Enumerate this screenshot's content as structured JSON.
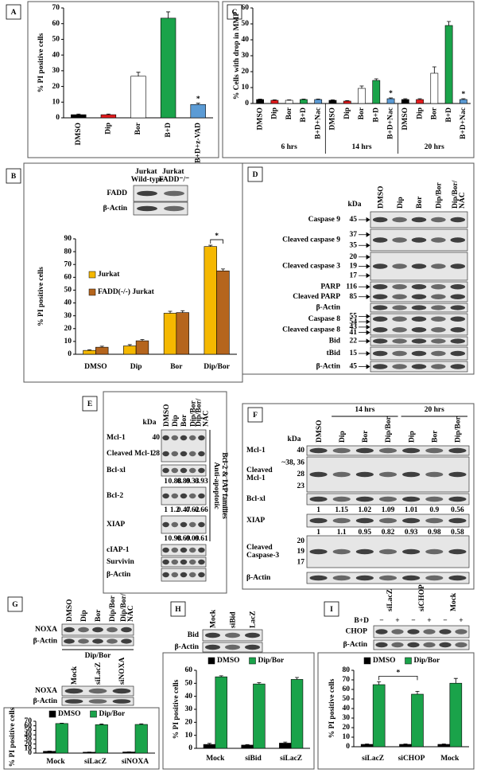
{
  "panel_labels": [
    "A",
    "B",
    "C",
    "D",
    "E",
    "F",
    "G",
    "H",
    "I"
  ],
  "chart_data": [
    {
      "type": "bar",
      "y_label": "% PI positive cells",
      "categories": [
        "DMSO",
        "Dip",
        "Bor",
        "B+D",
        "B+D+z-VAD"
      ],
      "values": [
        2,
        2,
        26.5,
        63.5,
        8.5
      ],
      "errors": [
        0.4,
        0.4,
        2.5,
        4,
        0.8
      ],
      "colors": [
        "#000000",
        "#e41a1c",
        "#ffffff",
        "#1aa34a",
        "#5b9bd5"
      ],
      "ylim": [
        0,
        70
      ],
      "yticks": [
        0,
        10,
        20,
        30,
        40,
        50,
        60,
        70
      ],
      "annotations": [
        {
          "text": "*",
          "category": "B+D+z-VAD"
        }
      ]
    },
    {
      "type": "bar",
      "y_label": "% Cells with drop in MMP",
      "groups": [
        "6 hrs",
        "14 hrs",
        "20 hrs"
      ],
      "categories": [
        "DMSO",
        "Dip",
        "Bor",
        "B+D",
        "B+D+Nac",
        "DMSO",
        "Dip",
        "Bor",
        "B+D",
        "B+D+Nac",
        "DMSO",
        "Dip",
        "Bor",
        "B+D",
        "B+D+Nac"
      ],
      "values": [
        2.5,
        2,
        2,
        2.5,
        2.5,
        2,
        1.5,
        9.5,
        14.5,
        3,
        2.5,
        2.5,
        19,
        49,
        2.5
      ],
      "errors": [
        0.3,
        0.3,
        0.3,
        0.3,
        0.3,
        0.3,
        0.3,
        1.5,
        1,
        0.5,
        0.5,
        0.5,
        4,
        2.5,
        0.5
      ],
      "colors": [
        "#000000",
        "#e41a1c",
        "#ffffff",
        "#1aa34a",
        "#5b9bd5",
        "#000000",
        "#e41a1c",
        "#ffffff",
        "#1aa34a",
        "#5b9bd5",
        "#000000",
        "#e41a1c",
        "#ffffff",
        "#1aa34a",
        "#5b9bd5"
      ],
      "ylim": [
        0,
        60
      ],
      "yticks": [
        0,
        10,
        20,
        30,
        40,
        50,
        60
      ],
      "annotations": [
        {
          "text": "*",
          "group": "14 hrs",
          "category": "B+D+Nac"
        },
        {
          "text": "*",
          "group": "20 hrs",
          "category": "B+D+Nac"
        }
      ]
    },
    {
      "type": "bar",
      "y_label": "% PI positive cells",
      "categories": [
        "DMSO",
        "Dip",
        "Bor",
        "Dip/Bor"
      ],
      "series": [
        {
          "name": "Jurkat",
          "color": "#f5b800",
          "values": [
            3,
            6.5,
            32,
            84
          ],
          "errors": [
            0.5,
            1,
            1.5,
            1
          ]
        },
        {
          "name": "FADD(-/-) Jurkat",
          "color": "#b5651d",
          "values": [
            5.5,
            10.5,
            32.5,
            65
          ],
          "errors": [
            0.8,
            1,
            1.5,
            1.5
          ]
        }
      ],
      "ylim": [
        0,
        90
      ],
      "yticks": [
        0,
        10,
        20,
        30,
        40,
        50,
        60,
        70,
        80,
        90
      ],
      "legend": "upper left",
      "annotations": [
        {
          "text": "*",
          "categories": [
            "Dip/Bor"
          ]
        }
      ]
    },
    {
      "type": "bar",
      "y_label": "% PI positive cells",
      "categories": [
        "Mock",
        "siLacZ",
        "siNOXA"
      ],
      "series": [
        {
          "name": "DMSO",
          "color": "#000000",
          "values": [
            4,
            2,
            2.5
          ],
          "errors": [
            0.5,
            0.4,
            0.4
          ]
        },
        {
          "name": "Dip/Bor",
          "color": "#1aa34a",
          "values": [
            65,
            62.5,
            63
          ],
          "errors": [
            0.8,
            1.5,
            1.2
          ]
        }
      ],
      "ylim": [
        0,
        70
      ],
      "yticks": [
        0,
        10,
        20,
        30,
        40,
        50,
        60,
        70
      ],
      "legend": "upper center"
    },
    {
      "type": "bar",
      "y_label": "% PI positive cells",
      "categories": [
        "Mock",
        "siBid",
        "siLacZ"
      ],
      "series": [
        {
          "name": "DMSO",
          "color": "#000000",
          "values": [
            3,
            2.5,
            4
          ],
          "errors": [
            0.8,
            0.4,
            0.8
          ]
        },
        {
          "name": "Dip/Bor",
          "color": "#1aa34a",
          "values": [
            55,
            49.5,
            53
          ],
          "errors": [
            0.8,
            1,
            1.5
          ]
        }
      ],
      "ylim": [
        0,
        60
      ],
      "yticks": [
        0,
        10,
        20,
        30,
        40,
        50,
        60
      ],
      "legend": "upper center"
    },
    {
      "type": "bar",
      "y_label": "% PI positive cells",
      "categories": [
        "siLacZ",
        "siCHOP",
        "Mock"
      ],
      "series": [
        {
          "name": "DMSO",
          "color": "#000000",
          "values": [
            2.5,
            2.5,
            2.5
          ],
          "errors": [
            0.4,
            0.4,
            0.4
          ]
        },
        {
          "name": "Dip/Bor",
          "color": "#1aa34a",
          "values": [
            65,
            55,
            66.5
          ],
          "errors": [
            3,
            3,
            5
          ]
        }
      ],
      "ylim": [
        0,
        80
      ],
      "yticks": [
        0,
        10,
        20,
        30,
        40,
        50,
        60,
        70,
        80
      ],
      "legend": "upper center",
      "annotations": [
        {
          "text": "*",
          "categories": [
            "siLacZ",
            "siCHOP"
          ]
        }
      ]
    }
  ],
  "blots": {
    "B": {
      "columns": [
        "Jurkat Wild-type",
        "Jurkat FADD⁻/⁻"
      ],
      "strips": [
        {
          "rows": [
            {
              "label": "FADD"
            }
          ]
        },
        {
          "rows": [
            {
              "label": "β-Actin"
            }
          ]
        }
      ]
    },
    "D": {
      "unit": "kDa",
      "columns": [
        "DMSO",
        "Dip",
        "Bor",
        "Dip/Bor",
        "Dip/Bor/ NAC"
      ],
      "strips": [
        {
          "rows": [
            {
              "label": "Caspase 9",
              "kda": [
                45
              ]
            }
          ]
        },
        {
          "rows": [
            {
              "label": "Cleaved caspase 9",
              "kda": [
                37,
                35
              ]
            }
          ]
        },
        {
          "rows": [
            {
              "label": "Cleaved caspase 3",
              "kda": [
                20,
                19,
                17
              ]
            }
          ]
        },
        {
          "rows": [
            {
              "label": "PARP",
              "kda": [
                116
              ]
            },
            {
              "label": "Cleaved PARP",
              "kda": [
                85
              ]
            }
          ]
        },
        {
          "rows": [
            {
              "label": "β-Actin"
            }
          ]
        },
        {
          "rows": [
            {
              "label": "Caspase 8",
              "kda": [
                55,
                54
              ]
            },
            {
              "label": "Cleaved caspase 8",
              "kda": [
                43,
                41
              ]
            }
          ]
        },
        {
          "rows": [
            {
              "label": "Bid",
              "kda": [
                22
              ]
            }
          ]
        },
        {
          "rows": [
            {
              "label": "tBid",
              "kda": [
                15
              ]
            }
          ]
        },
        {
          "rows": [
            {
              "label": "β-Actin",
              "kda": [
                45
              ]
            }
          ]
        }
      ]
    },
    "E": {
      "unit": "kDa",
      "columns": [
        "DMSO",
        "Dip",
        "Bor",
        "Dip/Bor",
        "Dip/Bor/ NAC"
      ],
      "side_label": [
        "Anti-apoptotic",
        "Bcl-2 & IAP families"
      ],
      "strips": [
        {
          "rows": [
            {
              "label": "Mcl-1",
              "kda": [
                40
              ]
            },
            {
              "label": "Cleaved Mcl-1",
              "kda": [
                28
              ]
            }
          ]
        },
        {
          "rows": [
            {
              "label": "Bcl-xl"
            }
          ],
          "densitometry": [
            1,
            0.88,
            0.89,
            0.33,
            0.93
          ]
        },
        {
          "rows": [
            {
              "label": "Bcl-2"
            }
          ],
          "densitometry": [
            1,
            1.2,
            0.47,
            0.62,
            0.66
          ]
        },
        {
          "rows": [
            {
              "label": "XIAP"
            }
          ],
          "densitometry": [
            1,
            0.98,
            0.69,
            0.09,
            0.61
          ]
        },
        {
          "rows": [
            {
              "label": "cIAP-1"
            }
          ]
        },
        {
          "rows": [
            {
              "label": "Survivin"
            }
          ]
        },
        {
          "rows": [
            {
              "label": "β-Actin"
            }
          ]
        }
      ]
    },
    "F": {
      "unit": "kDa",
      "column_groups": [
        "14 hrs",
        "20 hrs"
      ],
      "columns": [
        "DMSO",
        "Dip",
        "Bor",
        "Dip/Bor",
        "Dip",
        "Bor",
        "Dip/Bor"
      ],
      "strips": [
        {
          "rows": [
            {
              "label": "Mcl-1",
              "kda": [
                40
              ]
            }
          ]
        },
        {
          "rows": [
            {
              "label": "Cleaved Mcl-1",
              "kda": [
                "~38, 36",
                28,
                23
              ]
            }
          ]
        },
        {
          "rows": [
            {
              "label": "Bcl-xl"
            }
          ],
          "densitometry": [
            1,
            1.15,
            1.02,
            1.09,
            1.01,
            0.9,
            0.56
          ]
        },
        {
          "rows": [
            {
              "label": "XIAP"
            }
          ],
          "densitometry": [
            1,
            1.1,
            0.95,
            0.82,
            0.93,
            0.98,
            0.58
          ]
        },
        {
          "rows": [
            {
              "label": "Cleaved Caspase-3",
              "kda": [
                20,
                19,
                17
              ]
            }
          ]
        },
        {
          "rows": [
            {
              "label": "β-Actin"
            }
          ]
        }
      ]
    },
    "G1": {
      "columns": [
        "DMSO",
        "Dip",
        "Bor",
        "Dip/Bor",
        "Dip/Bor/ NAC"
      ],
      "strips": [
        {
          "rows": [
            {
              "label": "NOXA"
            }
          ]
        },
        {
          "rows": [
            {
              "label": "β-Actin"
            }
          ]
        }
      ]
    },
    "G2": {
      "header": "Dip/Bor",
      "columns": [
        "Mock",
        "siLacZ",
        "siNOXA"
      ],
      "strips": [
        {
          "rows": [
            {
              "label": "NOXA"
            }
          ]
        },
        {
          "rows": [
            {
              "label": "β-Actin"
            }
          ]
        }
      ]
    },
    "H": {
      "columns": [
        "Mock",
        "siBid",
        "LacZ"
      ],
      "strips": [
        {
          "rows": [
            {
              "label": "Bid"
            }
          ]
        },
        {
          "rows": [
            {
              "label": "β-Actin"
            }
          ]
        }
      ]
    },
    "I": {
      "treatment": {
        "label": "B+D",
        "values": [
          "−",
          "+",
          "−",
          "+",
          "−",
          "+"
        ]
      },
      "columns": [
        "siLacZ",
        "siCHOP",
        "Mock"
      ],
      "strips": [
        {
          "rows": [
            {
              "label": "CHOP"
            }
          ]
        },
        {
          "rows": [
            {
              "label": "β-Actin"
            }
          ]
        }
      ]
    }
  }
}
